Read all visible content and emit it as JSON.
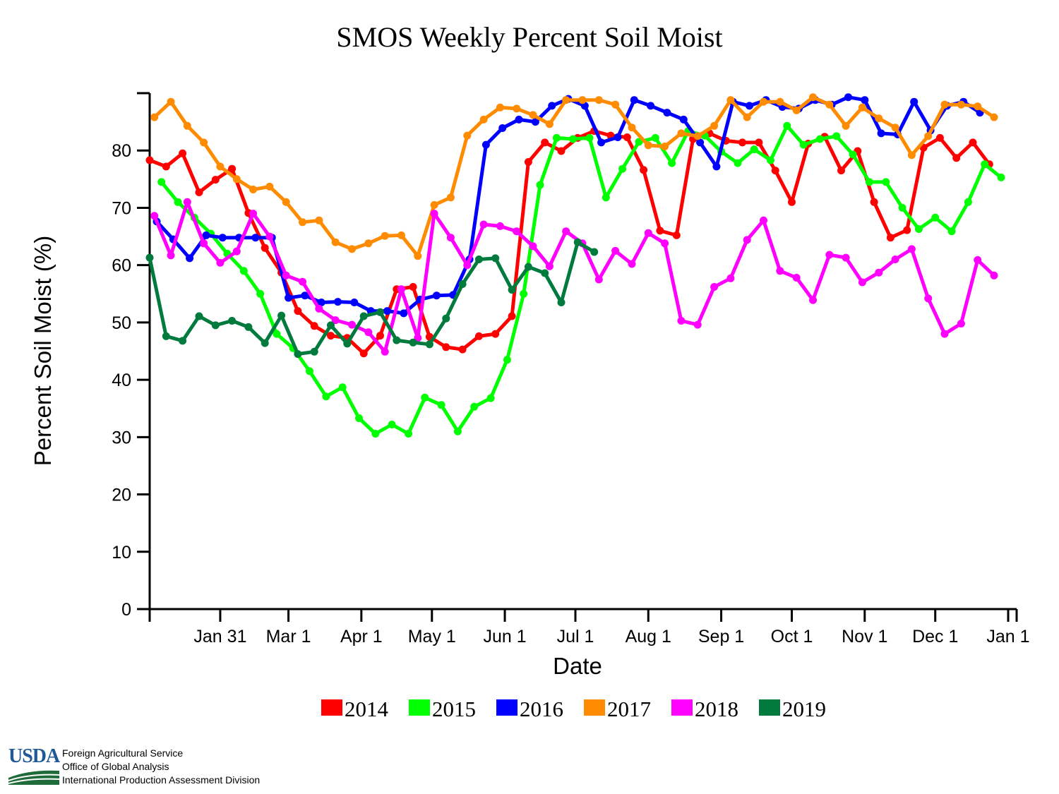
{
  "chart_data": {
    "type": "line",
    "title": "SMOS Weekly Percent Soil Moist",
    "xlabel": "Date",
    "ylabel": "Percent Soil Moist (%)",
    "ylim": [
      0,
      90
    ],
    "yticks": [
      0,
      10,
      20,
      30,
      40,
      50,
      60,
      70,
      80
    ],
    "xlim": [
      1,
      366
    ],
    "xticks": [
      {
        "label": "Jan 31",
        "day": 31
      },
      {
        "label": "Mar 1",
        "day": 60
      },
      {
        "label": "Apr 1",
        "day": 91
      },
      {
        "label": "May 1",
        "day": 121
      },
      {
        "label": "Jun 1",
        "day": 152
      },
      {
        "label": "Jul 1",
        "day": 182
      },
      {
        "label": "Aug 1",
        "day": 213
      },
      {
        "label": "Sep 1",
        "day": 244
      },
      {
        "label": "Oct 1",
        "day": 274
      },
      {
        "label": "Nov 1",
        "day": 305
      },
      {
        "label": "Dec 1",
        "day": 335
      },
      {
        "label": "Jan 1",
        "day": 366
      }
    ],
    "grid": false,
    "legend_position": "bottom",
    "series": [
      {
        "name": "2014",
        "color": "#ff0000",
        "day_start": 1,
        "day_step": 7,
        "values": [
          78.3,
          77.2,
          79.5,
          72.7,
          74.9,
          76.8,
          69.1,
          63.0,
          58.7,
          52.0,
          49.4,
          47.7,
          47.3,
          44.6,
          47.7,
          55.8,
          56.2,
          47.5,
          45.7,
          45.3,
          47.6,
          48.0,
          51.1,
          78.0,
          81.4,
          79.9,
          82.2,
          83.4,
          82.6,
          82.3,
          76.6,
          66.0,
          65.2,
          82.0,
          83.0,
          81.7,
          81.4,
          81.4,
          76.5,
          71.0,
          81.2,
          82.4,
          76.5,
          79.9,
          71.0,
          64.8,
          66.1,
          80.5,
          82.2,
          78.7,
          81.4,
          77.6
        ]
      },
      {
        "name": "2015",
        "color": "#00ff00",
        "day_start": 6,
        "day_step": 7,
        "values": [
          74.5,
          71.0,
          68.3,
          65.5,
          62.0,
          59.0,
          55.0,
          48.0,
          45.5,
          41.5,
          37.1,
          38.7,
          33.3,
          30.6,
          32.2,
          30.6,
          36.9,
          35.6,
          31.0,
          35.3,
          36.8,
          43.5,
          55.0,
          74.0,
          82.2,
          82.0,
          82.2,
          71.8,
          76.8,
          81.5,
          82.2,
          77.8,
          83.4,
          82.6,
          79.8,
          77.8,
          80.2,
          78.3,
          84.3,
          81.0,
          82.0,
          82.5,
          79.3,
          74.5,
          74.5,
          70.0,
          66.3,
          68.3,
          65.9,
          71.0,
          77.6,
          75.3
        ]
      },
      {
        "name": "2016",
        "color": "#0000ff",
        "day_start": 4,
        "day_step": 7,
        "values": [
          67.6,
          64.5,
          61.2,
          65.2,
          64.8,
          64.8,
          64.8,
          64.8,
          54.3,
          54.7,
          53.5,
          53.6,
          53.5,
          52.0,
          52.0,
          51.6,
          54.0,
          54.7,
          54.8,
          61.0,
          81.0,
          83.9,
          85.4,
          85.0,
          87.8,
          89.0,
          87.8,
          81.4,
          82.3,
          88.8,
          87.8,
          86.6,
          85.4,
          81.4,
          77.2,
          88.5,
          87.8,
          88.8,
          87.6,
          87.3,
          88.8,
          88.0,
          89.3,
          88.8,
          83.0,
          82.8,
          88.5,
          83.5,
          87.8,
          88.5,
          86.6
        ]
      },
      {
        "name": "2017",
        "color": "#ff8c00",
        "day_start": 3,
        "day_step": 7,
        "values": [
          85.8,
          88.5,
          84.3,
          81.4,
          77.2,
          75.0,
          73.2,
          73.7,
          71.0,
          67.5,
          67.8,
          64.0,
          62.8,
          63.8,
          65.1,
          65.2,
          61.6,
          70.5,
          71.8,
          82.6,
          85.4,
          87.5,
          87.3,
          86.2,
          84.6,
          88.8,
          88.8,
          88.8,
          88.0,
          84.0,
          80.9,
          80.7,
          83.0,
          82.5,
          84.3,
          88.8,
          85.8,
          88.5,
          88.5,
          87.0,
          89.3,
          88.0,
          84.3,
          87.5,
          85.6,
          84.0,
          79.2,
          82.5,
          88.0,
          88.0,
          87.7,
          85.8
        ]
      },
      {
        "name": "2018",
        "color": "#ff00ff",
        "day_start": 3,
        "day_step": 7,
        "values": [
          68.6,
          61.7,
          71.0,
          63.8,
          60.4,
          62.4,
          69.0,
          65.0,
          58.2,
          57.1,
          52.4,
          50.4,
          49.6,
          48.3,
          44.9,
          55.8,
          47.3,
          69.0,
          64.8,
          60.0,
          67.1,
          66.8,
          65.9,
          63.3,
          59.8,
          65.9,
          63.8,
          57.5,
          62.5,
          60.2,
          65.6,
          63.8,
          50.3,
          49.6,
          56.2,
          57.7,
          64.4,
          67.8,
          59.0,
          57.8,
          53.9,
          61.8,
          61.3,
          57.0,
          58.7,
          61.0,
          62.8,
          54.2,
          48.0,
          49.8,
          60.9,
          58.2
        ]
      },
      {
        "name": "2019",
        "color": "#007a3d",
        "day_start": 1,
        "day_step": 7,
        "values": [
          61.3,
          47.6,
          46.8,
          51.1,
          49.5,
          50.3,
          49.2,
          46.4,
          51.2,
          44.5,
          44.9,
          49.5,
          46.3,
          51.1,
          51.8,
          46.9,
          46.5,
          46.2,
          50.7,
          56.7,
          61.0,
          61.2,
          55.7,
          59.7,
          58.6,
          53.5,
          64.0,
          62.3
        ]
      }
    ]
  },
  "legend": [
    {
      "label": "2014",
      "color": "#ff0000"
    },
    {
      "label": "2015",
      "color": "#00ff00"
    },
    {
      "label": "2016",
      "color": "#0000ff"
    },
    {
      "label": "2017",
      "color": "#ff8c00"
    },
    {
      "label": "2018",
      "color": "#ff00ff"
    },
    {
      "label": "2019",
      "color": "#007a3d"
    }
  ],
  "footer": {
    "logo_text": "USDA",
    "logo_color": "#1f5a96",
    "line1": "Foreign Agricultural Service",
    "line2": "Office of Global Analysis",
    "line3": "International Production Assessment Division"
  }
}
